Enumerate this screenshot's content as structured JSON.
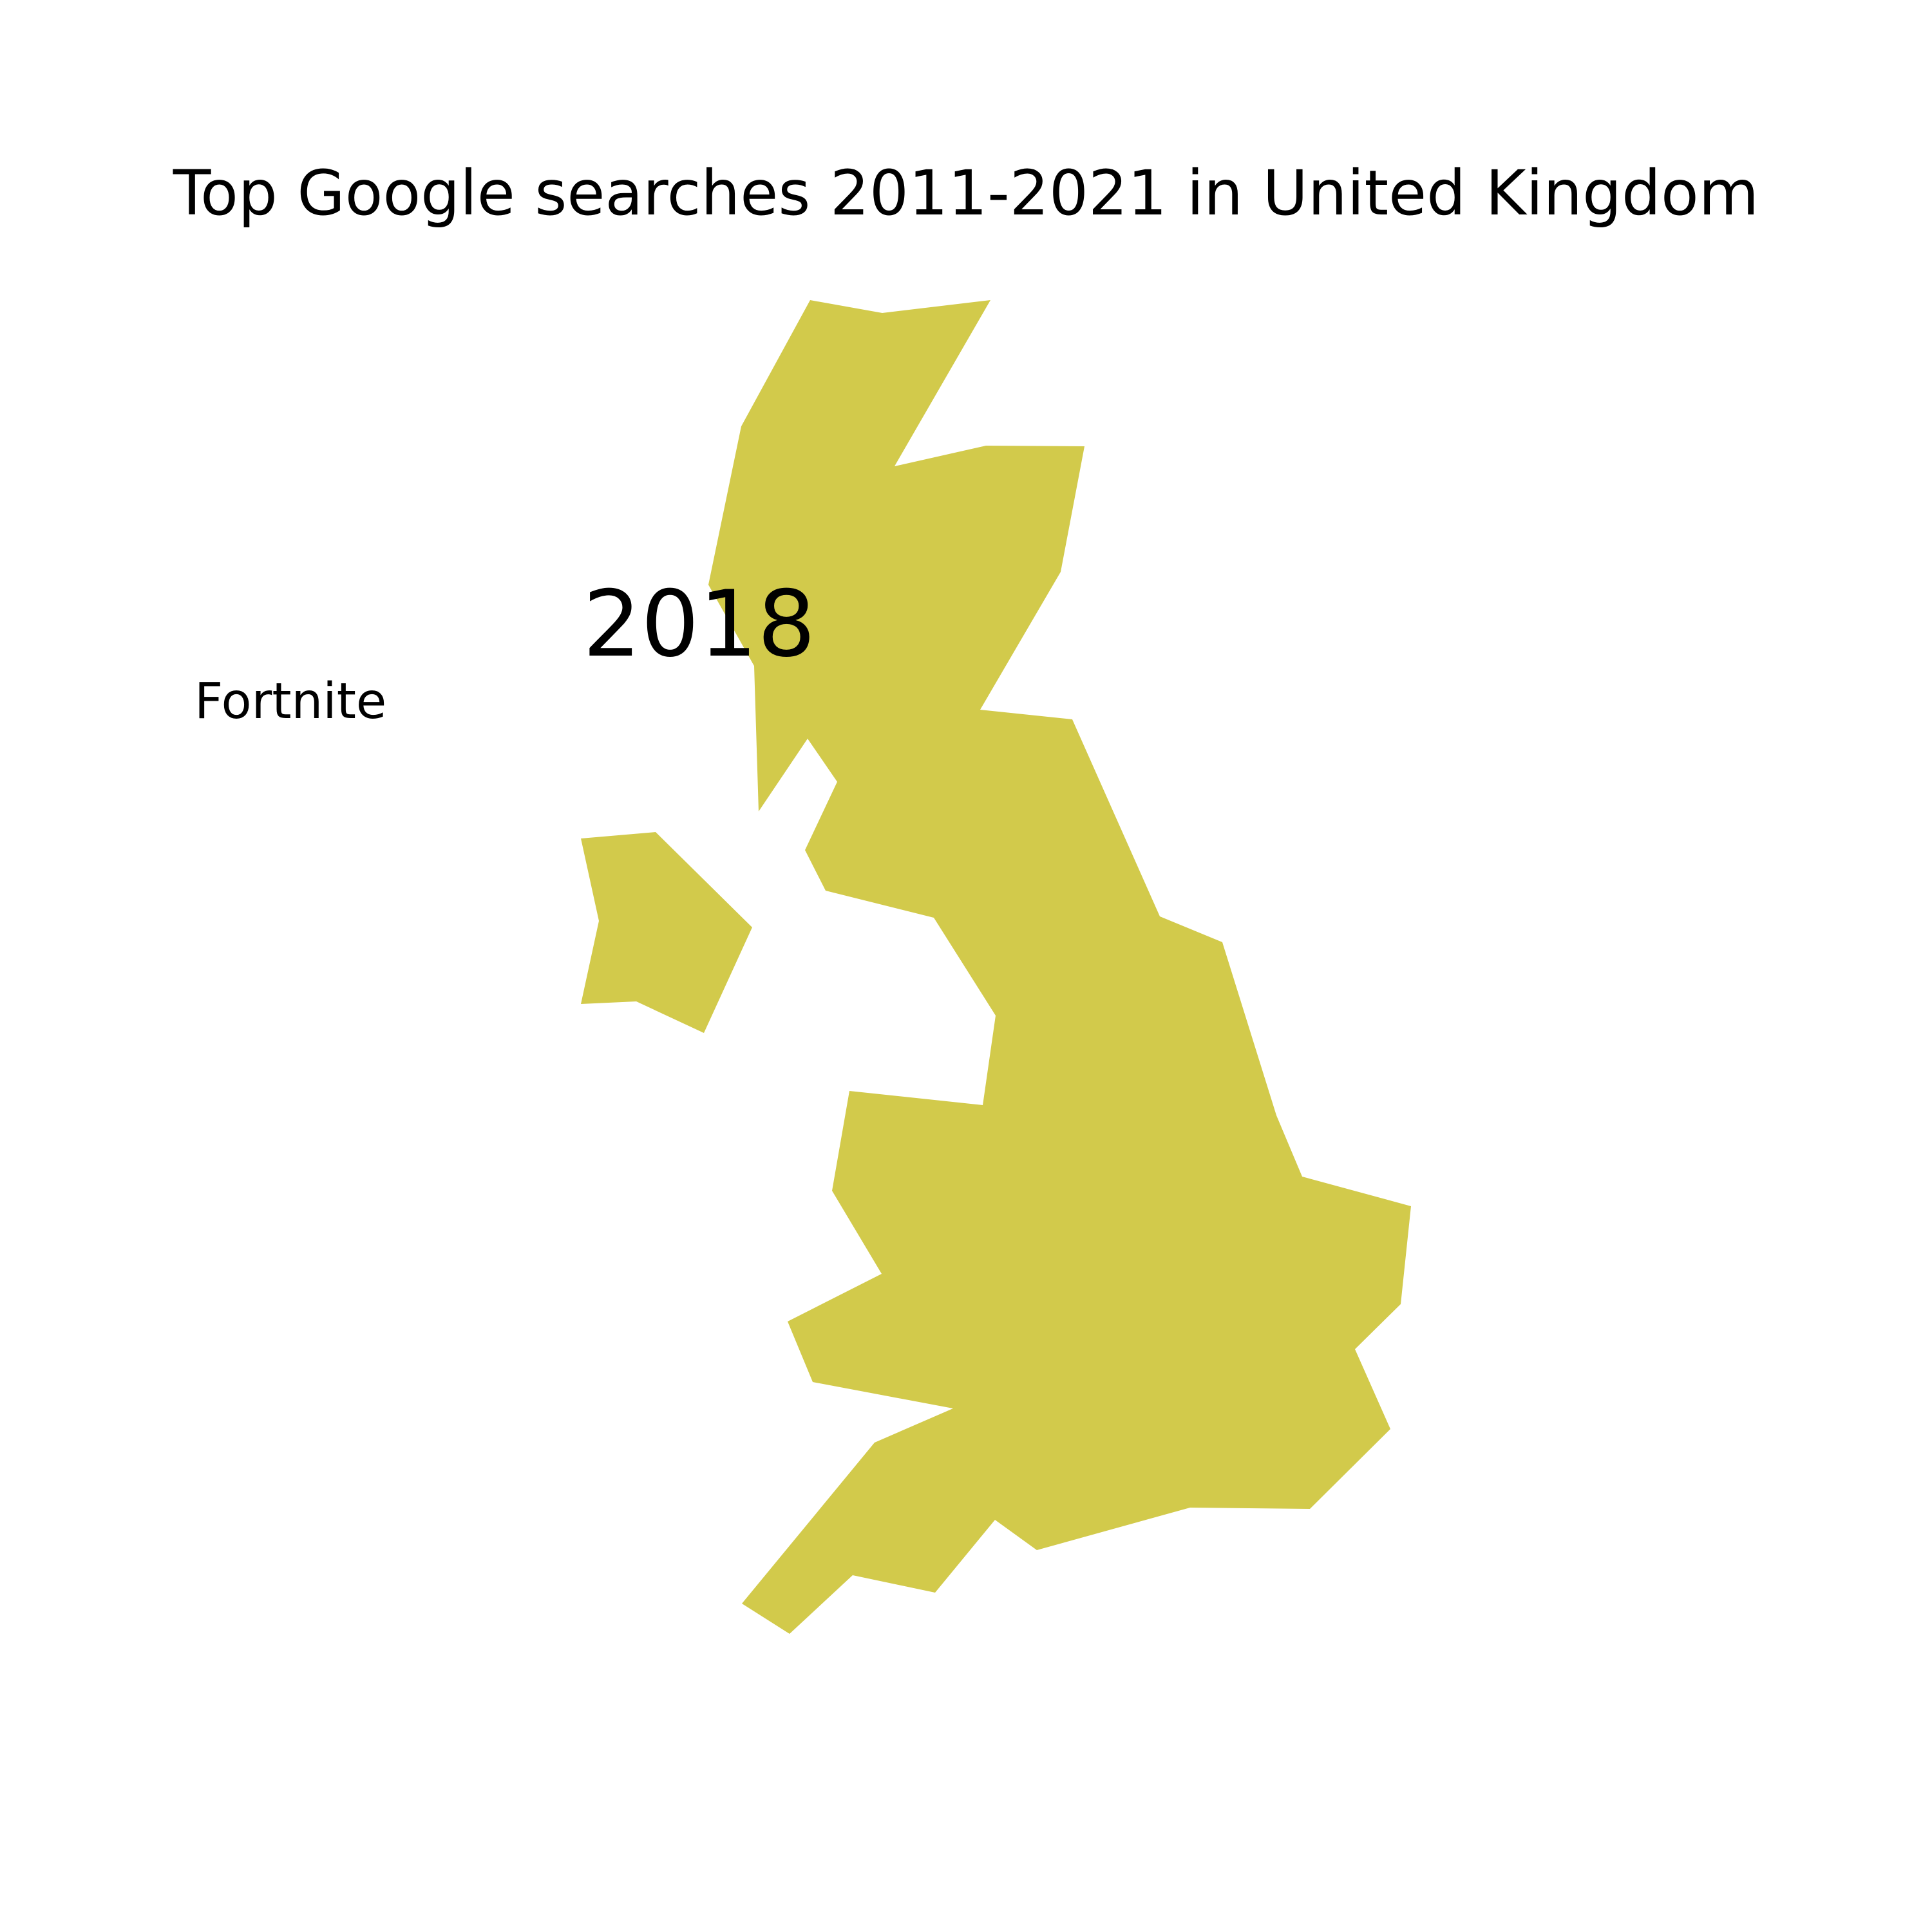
{
  "map": {
    "title": "Top Google searches 2011-2021 in United Kingdom",
    "year": "2018",
    "top_search": "Fortnite",
    "fill_color": "#d2ca4b",
    "background_color": "#ffffff"
  }
}
